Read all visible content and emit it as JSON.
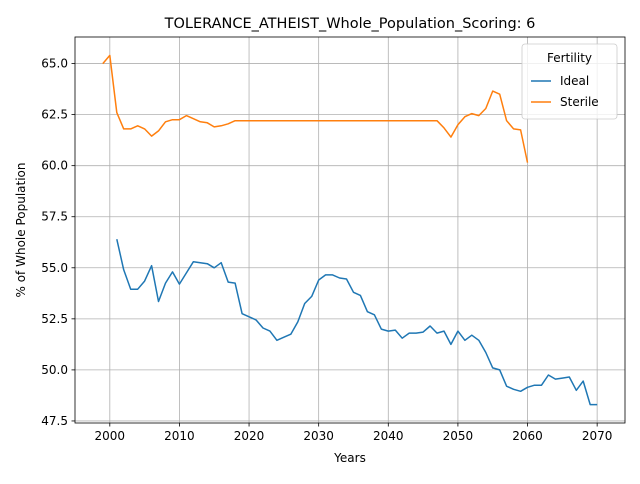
{
  "chart_data": {
    "type": "line",
    "title": "TOLERANCE_ATHEIST_Whole_Population_Scoring: 6",
    "xlabel": "Years",
    "ylabel": "% of Whole Population",
    "xlim": [
      1995,
      2074
    ],
    "ylim": [
      47.4,
      66.3
    ],
    "xticks": [
      2000,
      2010,
      2020,
      2030,
      2040,
      2050,
      2060,
      2070
    ],
    "yticks": [
      47.5,
      50.0,
      52.5,
      55.0,
      57.5,
      60.0,
      62.5,
      65.0
    ],
    "xtick_labels": [
      "2000",
      "2010",
      "2020",
      "2030",
      "2040",
      "2050",
      "2060",
      "2070"
    ],
    "ytick_labels": [
      "47.5",
      "50.0",
      "52.5",
      "55.0",
      "57.5",
      "60.0",
      "62.5",
      "65.0"
    ],
    "grid": true,
    "legend": {
      "title": "Fertility",
      "position": "top-right"
    },
    "series": [
      {
        "name": "Ideal",
        "color": "#1f77b4",
        "x": [
          2001,
          2002,
          2003,
          2004,
          2005,
          2006,
          2007,
          2008,
          2009,
          2010,
          2011,
          2012,
          2013,
          2014,
          2015,
          2016,
          2017,
          2018,
          2019,
          2020,
          2021,
          2022,
          2023,
          2024,
          2025,
          2026,
          2027,
          2028,
          2029,
          2030,
          2031,
          2032,
          2033,
          2034,
          2035,
          2036,
          2037,
          2038,
          2039,
          2040,
          2041,
          2042,
          2043,
          2044,
          2045,
          2046,
          2047,
          2048,
          2049,
          2050,
          2051,
          2052,
          2053,
          2054,
          2055,
          2056,
          2057,
          2058,
          2059,
          2060,
          2061,
          2062,
          2063,
          2064,
          2065,
          2066,
          2067,
          2068,
          2069,
          2070
        ],
        "values": [
          56.4,
          54.9,
          53.95,
          53.95,
          54.35,
          55.1,
          53.35,
          54.25,
          54.8,
          54.2,
          54.75,
          55.3,
          55.25,
          55.2,
          55.0,
          55.25,
          54.3,
          54.25,
          52.75,
          52.6,
          52.45,
          52.05,
          51.9,
          51.45,
          51.6,
          51.75,
          52.35,
          53.25,
          53.6,
          54.4,
          54.65,
          54.65,
          54.5,
          54.45,
          53.8,
          53.65,
          52.85,
          52.7,
          52.0,
          51.9,
          51.95,
          51.55,
          51.8,
          51.8,
          51.85,
          52.15,
          51.8,
          51.9,
          51.25,
          51.9,
          51.45,
          51.7,
          51.45,
          50.85,
          50.1,
          50.0,
          49.2,
          49.05,
          48.95,
          49.15,
          49.25,
          49.25,
          49.75,
          49.55,
          49.6,
          49.65,
          49.0,
          49.45,
          48.3,
          48.3
        ]
      },
      {
        "name": "Sterile",
        "color": "#ff7f0e",
        "x": [
          1999,
          2000,
          2001,
          2002,
          2003,
          2004,
          2005,
          2006,
          2007,
          2008,
          2009,
          2010,
          2011,
          2012,
          2013,
          2014,
          2015,
          2016,
          2017,
          2018,
          2019,
          2020,
          2021,
          2022,
          2023,
          2024,
          2025,
          2026,
          2027,
          2028,
          2029,
          2030,
          2031,
          2032,
          2033,
          2034,
          2035,
          2036,
          2037,
          2038,
          2039,
          2040,
          2041,
          2042,
          2043,
          2044,
          2045,
          2046,
          2047,
          2048,
          2049,
          2050,
          2051,
          2052,
          2053,
          2054,
          2055,
          2056,
          2057,
          2058,
          2059,
          2060
        ],
        "values": [
          65.0,
          65.4,
          62.6,
          61.8,
          61.8,
          61.95,
          61.8,
          61.45,
          61.7,
          62.15,
          62.25,
          62.25,
          62.45,
          62.3,
          62.15,
          62.1,
          61.9,
          61.95,
          62.05,
          62.2,
          62.2,
          62.2,
          62.2,
          62.2,
          62.2,
          62.2,
          62.2,
          62.2,
          62.2,
          62.2,
          62.2,
          62.2,
          62.2,
          62.2,
          62.2,
          62.2,
          62.2,
          62.2,
          62.2,
          62.2,
          62.2,
          62.2,
          62.2,
          62.2,
          62.2,
          62.2,
          62.2,
          62.2,
          62.2,
          61.85,
          61.4,
          62.0,
          62.4,
          62.55,
          62.45,
          62.8,
          63.65,
          63.5,
          62.2,
          61.8,
          61.75,
          60.15
        ]
      }
    ]
  }
}
